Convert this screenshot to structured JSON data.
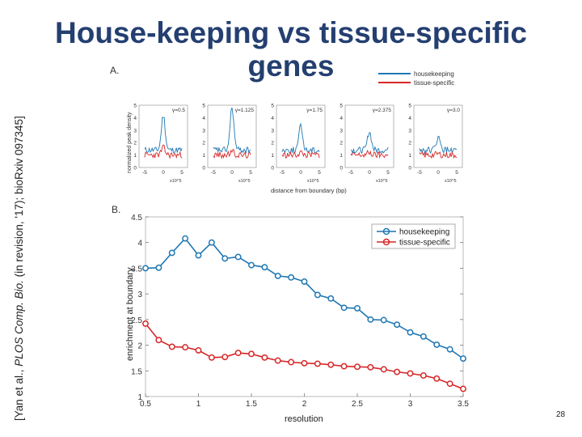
{
  "slide": {
    "title_line1": "House-keeping vs tissue-specific",
    "title_line2": "genes",
    "citation_pre": "[Yan et al., ",
    "citation_journal": "PLOS Comp. Bio.",
    "citation_post": " (in revision, '17); bioRxiv 097345]",
    "page_number": "28"
  },
  "colors": {
    "housekeeping": "#1f77b4",
    "tissue_specific": "#d62728",
    "title": "#243f70"
  },
  "panel_a": {
    "label": "A.",
    "ylabel": "normalized peak density",
    "xlabel": "distance from boundary (bp)",
    "scale_label": "x10^5",
    "legend": [
      "housekeeping",
      "tissue-specific"
    ],
    "x_ticks": [
      "-5",
      "0",
      "5"
    ],
    "y_ticks": [
      "0",
      "1",
      "2",
      "3",
      "4",
      "5"
    ],
    "subplots": [
      {
        "gamma": "γ=0.5"
      },
      {
        "gamma": "γ=1.125"
      },
      {
        "gamma": "γ=1.75"
      },
      {
        "gamma": "γ=2.375"
      },
      {
        "gamma": "γ=3.0"
      }
    ]
  },
  "panel_b": {
    "label": "B."
  },
  "chart_data": {
    "type": "line",
    "xlabel": "resolution",
    "ylabel": "enrichment at boundary",
    "xlim": [
      0.5,
      3.5
    ],
    "ylim": [
      1,
      4.5
    ],
    "x_ticks": [
      "0.5",
      "1",
      "1.5",
      "2",
      "2.5",
      "3",
      "3.5"
    ],
    "y_ticks": [
      "1",
      "1.5",
      "2",
      "2.5",
      "3",
      "3.5",
      "4",
      "4.5"
    ],
    "legend_position": "top-right",
    "x": [
      0.5,
      0.625,
      0.75,
      0.875,
      1.0,
      1.125,
      1.25,
      1.375,
      1.5,
      1.625,
      1.75,
      1.875,
      2.0,
      2.125,
      2.25,
      2.375,
      2.5,
      2.625,
      2.75,
      2.875,
      3.0,
      3.125,
      3.25,
      3.375,
      3.5
    ],
    "series": [
      {
        "name": "housekeeping",
        "values": [
          3.5,
          3.51,
          3.8,
          4.08,
          3.75,
          4.0,
          3.69,
          3.72,
          3.56,
          3.52,
          3.35,
          3.32,
          3.24,
          2.98,
          2.91,
          2.73,
          2.72,
          2.5,
          2.49,
          2.4,
          2.25,
          2.17,
          2.01,
          1.92,
          1.74
        ]
      },
      {
        "name": "tissue-specific",
        "values": [
          2.42,
          2.1,
          1.97,
          1.96,
          1.9,
          1.76,
          1.77,
          1.85,
          1.83,
          1.76,
          1.7,
          1.67,
          1.65,
          1.64,
          1.62,
          1.59,
          1.58,
          1.57,
          1.53,
          1.48,
          1.45,
          1.41,
          1.35,
          1.25,
          1.15
        ]
      }
    ]
  }
}
